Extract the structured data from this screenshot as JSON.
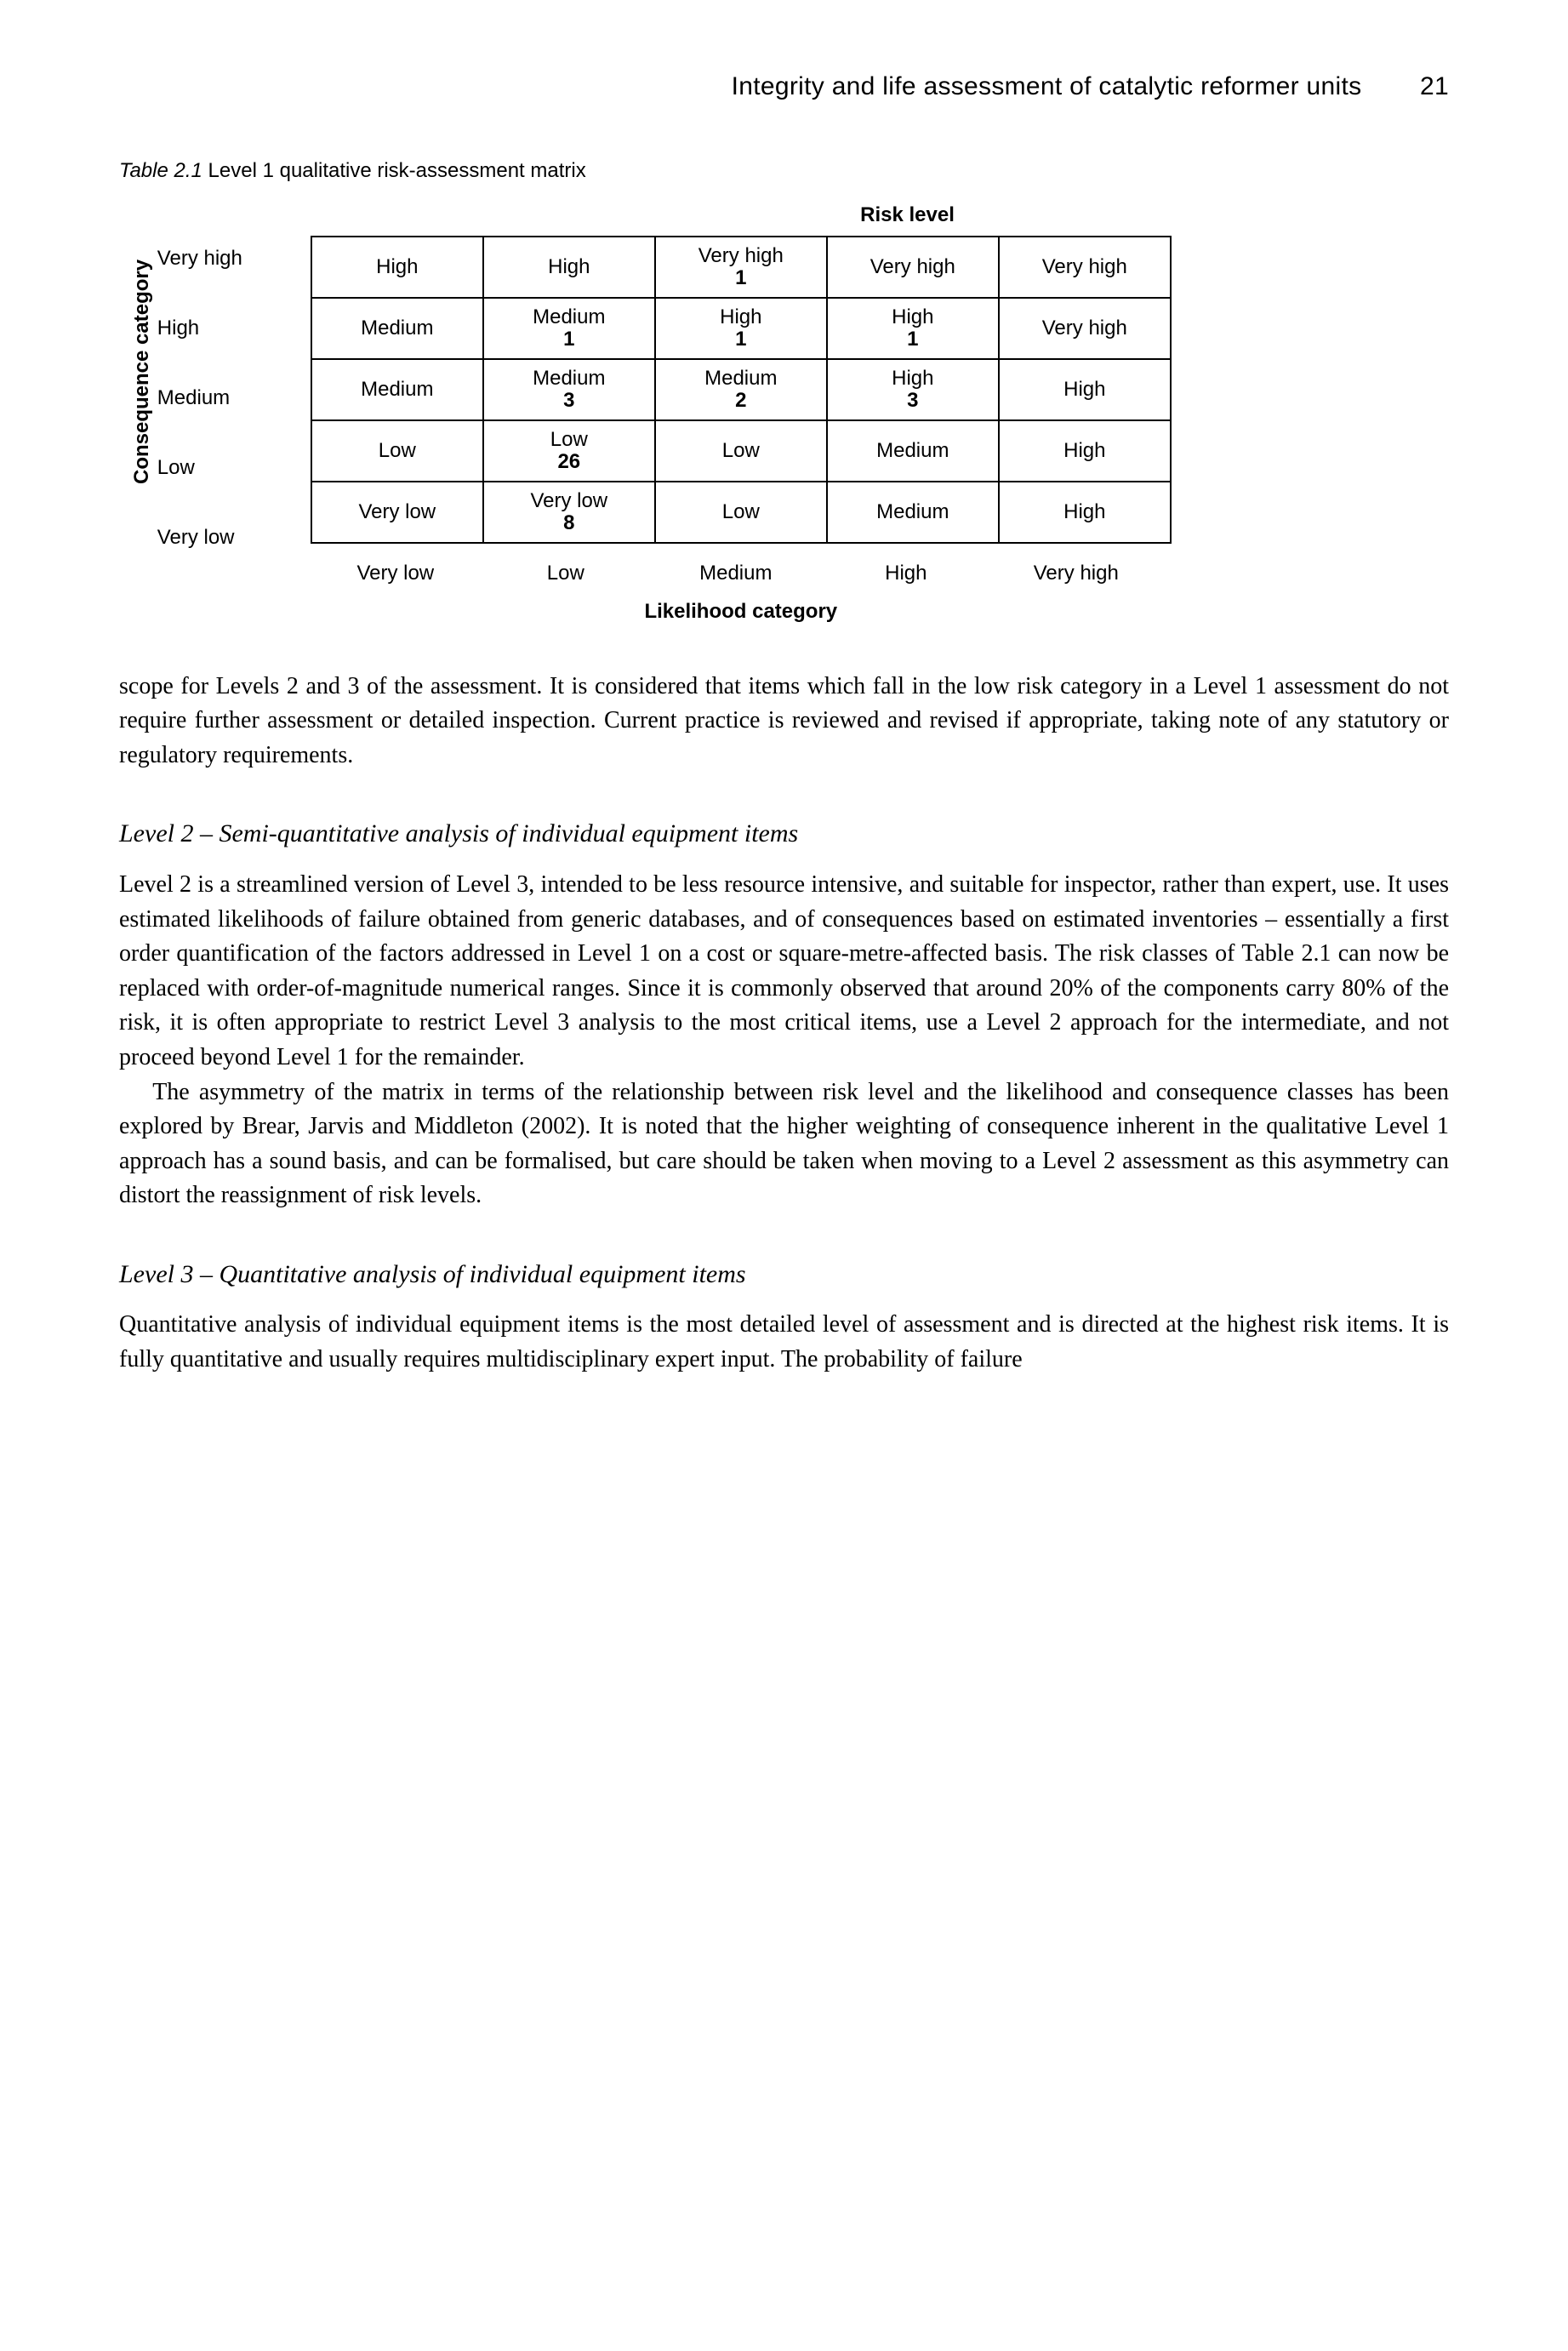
{
  "header": {
    "title": "Integrity and life assessment of catalytic reformer units",
    "page_number": "21"
  },
  "table": {
    "caption_number": "Table 2.1",
    "caption_text": "Level 1 qualitative risk-assessment matrix",
    "risk_level_title": "Risk level",
    "y_axis_label": "Consequence category",
    "x_axis_label": "Likelihood category",
    "row_labels": [
      "Very high",
      "High",
      "Medium",
      "Low",
      "Very low"
    ],
    "col_labels": [
      "Very low",
      "Low",
      "Medium",
      "High",
      "Very high"
    ],
    "cells": [
      [
        {
          "v": "High",
          "n": ""
        },
        {
          "v": "High",
          "n": ""
        },
        {
          "v": "Very high",
          "n": "1"
        },
        {
          "v": "Very high",
          "n": ""
        },
        {
          "v": "Very high",
          "n": ""
        }
      ],
      [
        {
          "v": "Medium",
          "n": ""
        },
        {
          "v": "Medium",
          "n": "1"
        },
        {
          "v": "High",
          "n": "1"
        },
        {
          "v": "High",
          "n": "1"
        },
        {
          "v": "Very high",
          "n": ""
        }
      ],
      [
        {
          "v": "Medium",
          "n": ""
        },
        {
          "v": "Medium",
          "n": "3"
        },
        {
          "v": "Medium",
          "n": "2"
        },
        {
          "v": "High",
          "n": "3"
        },
        {
          "v": "High",
          "n": ""
        }
      ],
      [
        {
          "v": "Low",
          "n": ""
        },
        {
          "v": "Low",
          "n": "26"
        },
        {
          "v": "Low",
          "n": ""
        },
        {
          "v": "Medium",
          "n": ""
        },
        {
          "v": "High",
          "n": ""
        }
      ],
      [
        {
          "v": "Very low",
          "n": ""
        },
        {
          "v": "Very low",
          "n": "8"
        },
        {
          "v": "Low",
          "n": ""
        },
        {
          "v": "Medium",
          "n": ""
        },
        {
          "v": "High",
          "n": ""
        }
      ]
    ]
  },
  "paragraphs": {
    "p1": "scope for Levels 2 and 3 of the assessment. It is considered that items which fall in the low risk category in a Level 1 assessment do not require further assessment or detailed inspection. Current practice is reviewed and revised if appropriate, taking note of any statutory or regulatory requirements.",
    "h2": "Level 2 – Semi-quantitative analysis of individual equipment items",
    "p2": "Level 2 is a streamlined version of Level 3, intended to be less resource intensive, and suitable for inspector, rather than expert, use. It uses estimated likelihoods of failure obtained from generic databases, and of consequences based on estimated inventories – essentially a first order quantification of the factors addressed in Level 1 on a cost or square-metre-affected basis. The risk classes of Table 2.1 can now be replaced with order-of-magnitude numerical ranges. Since it is commonly observed that around 20% of the components carry 80% of the risk, it is often appropriate to restrict Level 3 analysis to the most critical items, use a Level 2 approach for the intermediate, and not proceed beyond Level 1 for the remainder.",
    "p3": "The asymmetry of the matrix in terms of the relationship between risk level and the likelihood and consequence classes has been explored by Brear, Jarvis and Middleton (2002). It is noted that the higher weighting of consequence inherent in the qualitative Level 1 approach has a sound basis, and can be formalised, but care should be taken when moving to a Level 2 assessment as this asymmetry can distort the reassignment of risk levels.",
    "h3": "Level 3 – Quantitative analysis of individual equipment items",
    "p4": "Quantitative analysis of individual equipment items is the most detailed level of assessment and is directed at the highest risk items. It is fully quantitative and usually requires multidisciplinary expert input. The probability of failure"
  }
}
